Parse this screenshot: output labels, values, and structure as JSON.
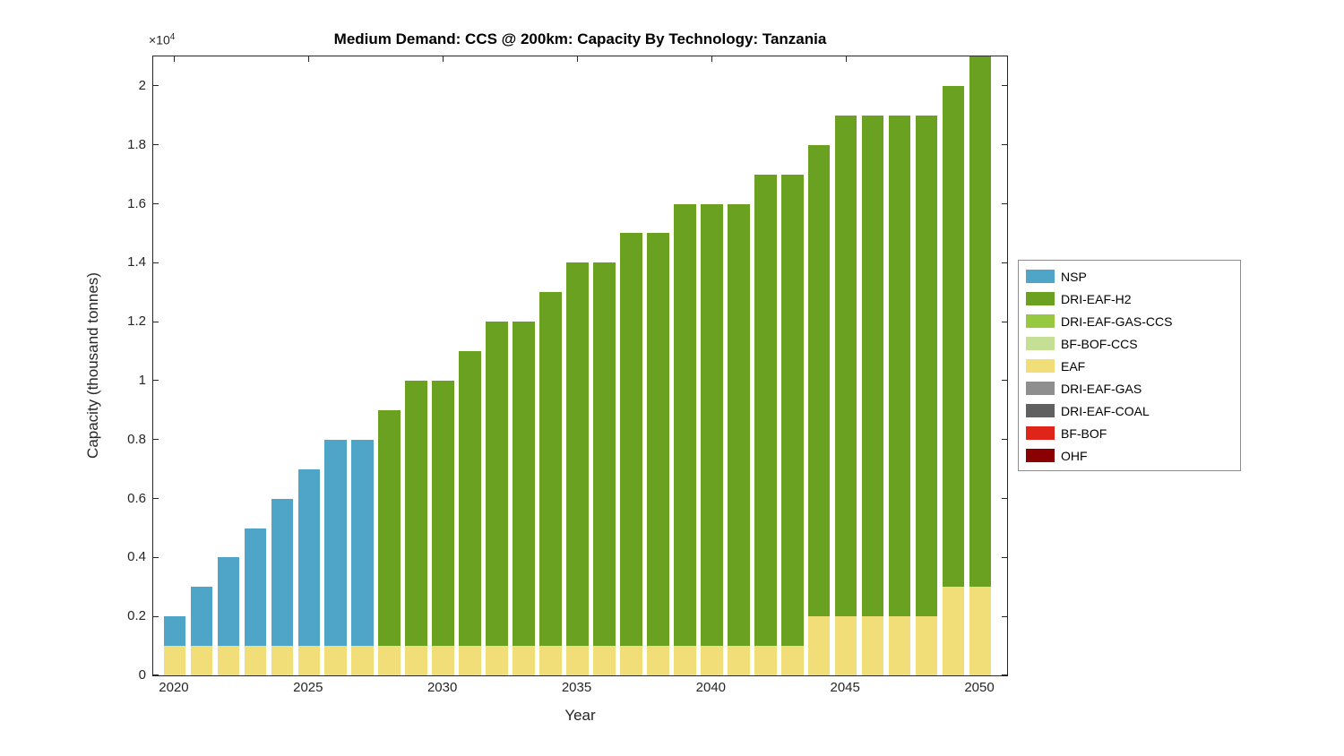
{
  "chart_data": {
    "type": "bar",
    "stacked": true,
    "title": "Medium Demand: CCS @ 200km: Capacity By Technology: Tanzania",
    "xlabel": "Year",
    "ylabel": "Capacity (thousand tonnes)",
    "y_multiplier": {
      "text": "×10",
      "exp": "4"
    },
    "ylim": [
      0,
      21000
    ],
    "x_range": [
      2019.2,
      2051.0
    ],
    "bar_rel_width": 0.82,
    "grid": false,
    "legend_position": "right-outside",
    "years": [
      2020,
      2021,
      2022,
      2023,
      2024,
      2025,
      2026,
      2027,
      2028,
      2029,
      2030,
      2031,
      2032,
      2033,
      2034,
      2035,
      2036,
      2037,
      2038,
      2039,
      2040,
      2041,
      2042,
      2043,
      2044,
      2045,
      2046,
      2047,
      2048,
      2049,
      2050
    ],
    "xticks": [
      2020,
      2025,
      2030,
      2035,
      2040,
      2045,
      2050
    ],
    "yticks": [
      {
        "value": 0,
        "label": "0"
      },
      {
        "value": 2000,
        "label": "0.2"
      },
      {
        "value": 4000,
        "label": "0.4"
      },
      {
        "value": 6000,
        "label": "0.6"
      },
      {
        "value": 8000,
        "label": "0.8"
      },
      {
        "value": 10000,
        "label": "1"
      },
      {
        "value": 12000,
        "label": "1.2"
      },
      {
        "value": 14000,
        "label": "1.4"
      },
      {
        "value": 16000,
        "label": "1.6"
      },
      {
        "value": 18000,
        "label": "1.8"
      },
      {
        "value": 20000,
        "label": "2"
      }
    ],
    "series": [
      {
        "name": "NSP",
        "color": "#4FA5C7",
        "values": [
          1000,
          2000,
          3000,
          4000,
          5000,
          6000,
          7000,
          7000,
          0,
          0,
          0,
          0,
          0,
          0,
          0,
          0,
          0,
          0,
          0,
          0,
          0,
          0,
          0,
          0,
          0,
          0,
          0,
          0,
          0,
          0,
          0
        ]
      },
      {
        "name": "DRI-EAF-H2",
        "color": "#6AA121",
        "values": [
          0,
          0,
          0,
          0,
          0,
          0,
          0,
          0,
          8000,
          9000,
          9000,
          10000,
          11000,
          11000,
          12000,
          13000,
          13000,
          14000,
          14000,
          15000,
          15000,
          15000,
          16000,
          16000,
          16000,
          17000,
          17000,
          17000,
          17000,
          17000,
          18000
        ]
      },
      {
        "name": "DRI-EAF-GAS-CCS",
        "color": "#96C940",
        "values": [
          0,
          0,
          0,
          0,
          0,
          0,
          0,
          0,
          0,
          0,
          0,
          0,
          0,
          0,
          0,
          0,
          0,
          0,
          0,
          0,
          0,
          0,
          0,
          0,
          0,
          0,
          0,
          0,
          0,
          0,
          0
        ]
      },
      {
        "name": "BF-BOF-CCS",
        "color": "#C5E094",
        "values": [
          0,
          0,
          0,
          0,
          0,
          0,
          0,
          0,
          0,
          0,
          0,
          0,
          0,
          0,
          0,
          0,
          0,
          0,
          0,
          0,
          0,
          0,
          0,
          0,
          0,
          0,
          0,
          0,
          0,
          0,
          0
        ]
      },
      {
        "name": "EAF",
        "color": "#F2DE79",
        "values": [
          1000,
          1000,
          1000,
          1000,
          1000,
          1000,
          1000,
          1000,
          1000,
          1000,
          1000,
          1000,
          1000,
          1000,
          1000,
          1000,
          1000,
          1000,
          1000,
          1000,
          1000,
          1000,
          1000,
          1000,
          2000,
          2000,
          2000,
          2000,
          2000,
          3000,
          3000
        ]
      },
      {
        "name": "DRI-EAF-GAS",
        "color": "#8E8E8E",
        "values": [
          0,
          0,
          0,
          0,
          0,
          0,
          0,
          0,
          0,
          0,
          0,
          0,
          0,
          0,
          0,
          0,
          0,
          0,
          0,
          0,
          0,
          0,
          0,
          0,
          0,
          0,
          0,
          0,
          0,
          0,
          0
        ]
      },
      {
        "name": "DRI-EAF-COAL",
        "color": "#606060",
        "values": [
          0,
          0,
          0,
          0,
          0,
          0,
          0,
          0,
          0,
          0,
          0,
          0,
          0,
          0,
          0,
          0,
          0,
          0,
          0,
          0,
          0,
          0,
          0,
          0,
          0,
          0,
          0,
          0,
          0,
          0,
          0
        ]
      },
      {
        "name": "BF-BOF",
        "color": "#DF2419",
        "values": [
          0,
          0,
          0,
          0,
          0,
          0,
          0,
          0,
          0,
          0,
          0,
          0,
          0,
          0,
          0,
          0,
          0,
          0,
          0,
          0,
          0,
          0,
          0,
          0,
          0,
          0,
          0,
          0,
          0,
          0,
          0
        ]
      },
      {
        "name": "OHF",
        "color": "#8B0000",
        "values": [
          0,
          0,
          0,
          0,
          0,
          0,
          0,
          0,
          0,
          0,
          0,
          0,
          0,
          0,
          0,
          0,
          0,
          0,
          0,
          0,
          0,
          0,
          0,
          0,
          0,
          0,
          0,
          0,
          0,
          0,
          0
        ]
      }
    ]
  }
}
